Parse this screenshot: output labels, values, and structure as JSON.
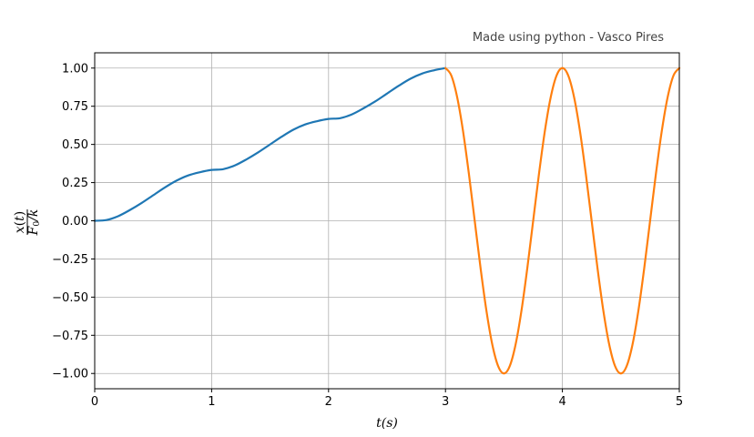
{
  "chart_data": {
    "type": "line",
    "annotation": "Made using python - Vasco Pires",
    "xlabel": "t(s)",
    "ylabel": "x(t) / F0/k",
    "ylabel_parts": {
      "num_var": "x",
      "num_arg": "t",
      "den_var": "F",
      "den_sub": "0",
      "den_rest": "/k"
    },
    "xlim": [
      0,
      5
    ],
    "ylim": [
      -1.1,
      1.1
    ],
    "x_ticks": [
      0,
      1,
      2,
      3,
      4,
      5
    ],
    "x_tick_labels": [
      "0",
      "1",
      "2",
      "3",
      "4",
      "5"
    ],
    "y_ticks": [
      -1.0,
      -0.75,
      -0.5,
      -0.25,
      0.0,
      0.25,
      0.5,
      0.75,
      1.0
    ],
    "y_tick_labels": [
      "−1.00",
      "−0.75",
      "−0.50",
      "−0.25",
      "0.00",
      "0.25",
      "0.50",
      "0.75",
      "1.00"
    ],
    "grid": true,
    "legend": false,
    "series": [
      {
        "color": "#1f77b4",
        "x": [
          0,
          0.1,
          0.2,
          0.3,
          0.4,
          0.5,
          0.6,
          0.7,
          0.8,
          0.9,
          1.0,
          1.1,
          1.2,
          1.3,
          1.4,
          1.5,
          1.6,
          1.7,
          1.8,
          1.9,
          2.0,
          2.1,
          2.2,
          2.3,
          2.4,
          2.5,
          2.6,
          2.7,
          2.8,
          2.9,
          3.0
        ],
        "y": [
          0.0,
          0.005,
          0.03,
          0.07,
          0.116,
          0.167,
          0.218,
          0.263,
          0.297,
          0.318,
          0.333,
          0.338,
          0.363,
          0.403,
          0.449,
          0.5,
          0.551,
          0.597,
          0.631,
          0.652,
          0.667,
          0.672,
          0.697,
          0.737,
          0.782,
          0.833,
          0.884,
          0.93,
          0.964,
          0.985,
          1.0
        ]
      },
      {
        "color": "#ff7f0e",
        "x": [
          3.0,
          3.05,
          3.1,
          3.15,
          3.2,
          3.25,
          3.3,
          3.35,
          3.4,
          3.45,
          3.5,
          3.55,
          3.6,
          3.65,
          3.7,
          3.75,
          3.8,
          3.85,
          3.9,
          3.95,
          4.0,
          4.05,
          4.1,
          4.15,
          4.2,
          4.25,
          4.3,
          4.35,
          4.4,
          4.45,
          4.5,
          4.55,
          4.6,
          4.65,
          4.7,
          4.75,
          4.8,
          4.85,
          4.9,
          4.95,
          5.0
        ],
        "y": [
          1.0,
          0.951,
          0.809,
          0.588,
          0.309,
          0.0,
          -0.309,
          -0.588,
          -0.809,
          -0.951,
          -1.0,
          -0.951,
          -0.809,
          -0.588,
          -0.309,
          0.0,
          0.309,
          0.588,
          0.809,
          0.951,
          1.0,
          0.951,
          0.809,
          0.588,
          0.309,
          0.0,
          -0.309,
          -0.588,
          -0.809,
          -0.951,
          -1.0,
          -0.951,
          -0.809,
          -0.588,
          -0.309,
          0.0,
          0.309,
          0.588,
          0.809,
          0.951,
          1.0
        ]
      }
    ]
  }
}
